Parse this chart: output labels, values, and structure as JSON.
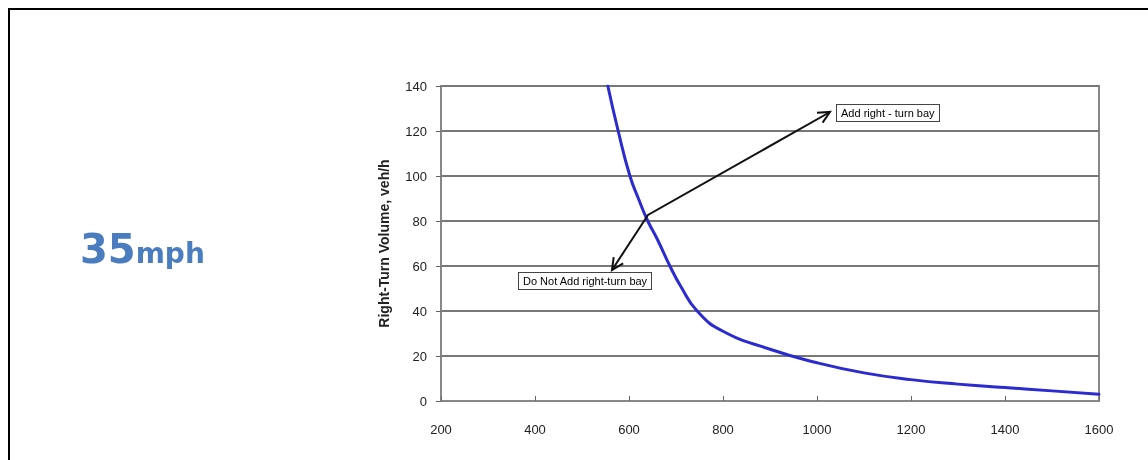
{
  "chart_data": {
    "type": "line",
    "title": "35mph",
    "ylabel": "Right-Turn Volume, veh/h",
    "x": [
      555,
      577,
      602,
      620,
      640,
      660,
      687,
      710,
      745,
      800,
      900,
      1000,
      1100,
      1200,
      1300,
      1400,
      1500,
      1600
    ],
    "series": [
      {
        "color": "#2b2bd0",
        "values": [
          140,
          120,
          100,
          90,
          80,
          72,
          60,
          51,
          40,
          31,
          23,
          17,
          12.5,
          9.5,
          7.5,
          6,
          4.5,
          3
        ]
      }
    ],
    "xlim": [
      200,
      1600
    ],
    "xticks": [
      200,
      400,
      600,
      800,
      1000,
      1200,
      1400,
      1600
    ],
    "ylim": [
      0,
      140
    ],
    "yticks": [
      0,
      20,
      40,
      60,
      80,
      100,
      120,
      140
    ],
    "grid": "y",
    "marker": "none",
    "line_style": "solid",
    "annotations": [
      "Add right - turn bay",
      "Do Not Add right-turn bay"
    ]
  }
}
